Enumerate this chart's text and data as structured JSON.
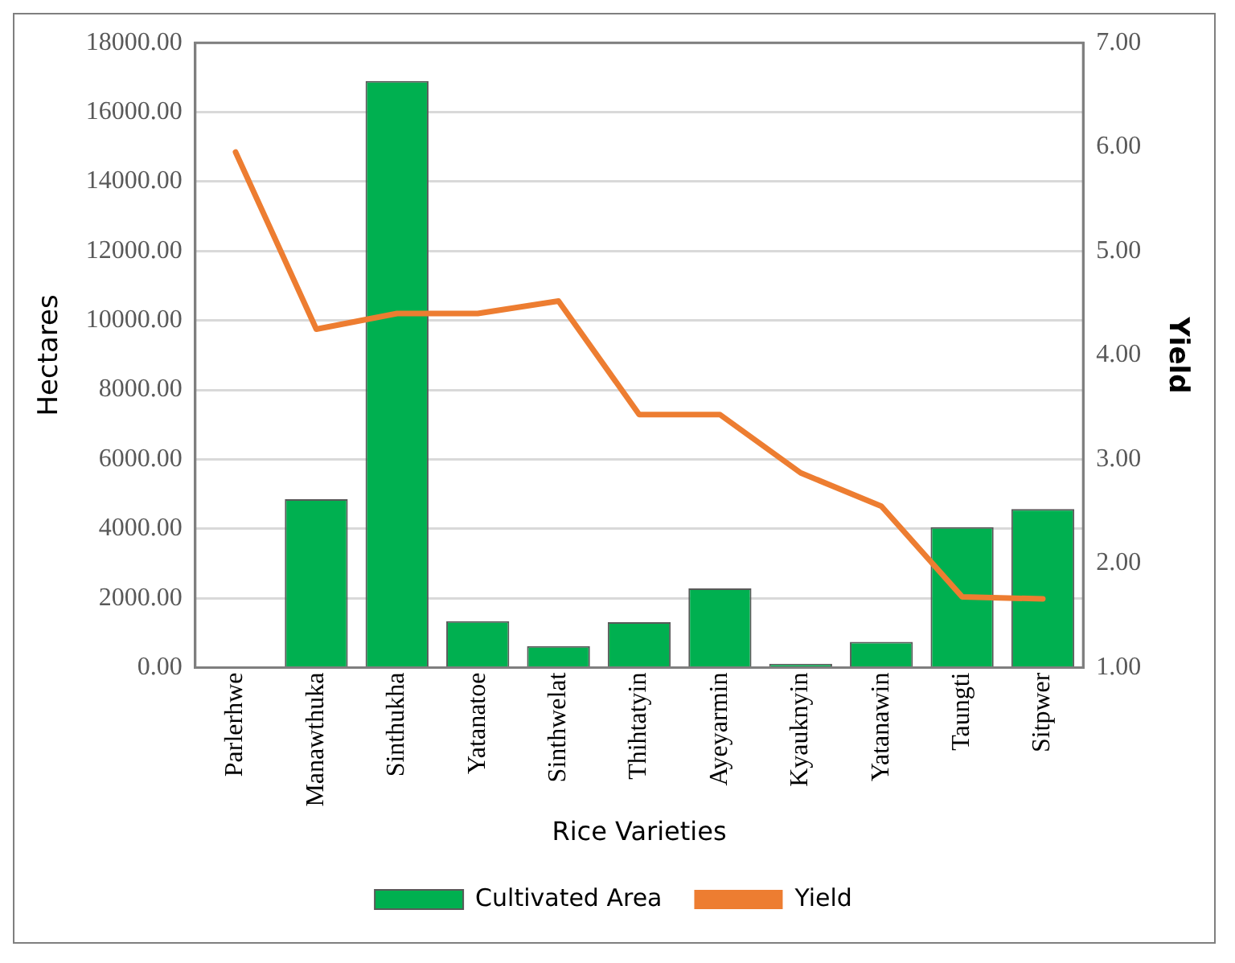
{
  "chart_data": {
    "type": "bar",
    "xlabel": "Rice Varieties",
    "ylabel": "Hectares",
    "y2label": "Yield",
    "categories": [
      "Parlerhwe",
      "Manawthuka",
      "Sinthukha",
      "Yatanatoe",
      "Sinthwelat",
      "Thihtatyin",
      "Ayeyarmin",
      "Kyauknyin",
      "Yatanawin",
      "Taungti",
      "Sitpwer"
    ],
    "series": [
      {
        "name": "Cultivated Area",
        "color": "#00b050",
        "values": [
          30,
          4850,
          16900,
          1340,
          620,
          1310,
          2280,
          110,
          740,
          4050,
          4570
        ]
      },
      {
        "name": "Yield",
        "type": "line",
        "axis": "y2",
        "color": "#ed7d31",
        "values": [
          5.95,
          4.25,
          4.4,
          4.4,
          4.52,
          3.43,
          3.43,
          2.87,
          2.55,
          1.68,
          1.66
        ]
      }
    ],
    "ylim": [
      0,
      18000
    ],
    "yticks": [
      {
        "value": 0,
        "label": "0.00"
      },
      {
        "value": 2000,
        "label": "2000.00"
      },
      {
        "value": 4000,
        "label": "4000.00"
      },
      {
        "value": 6000,
        "label": "6000.00"
      },
      {
        "value": 8000,
        "label": "8000.00"
      },
      {
        "value": 10000,
        "label": "10000.00"
      },
      {
        "value": 12000,
        "label": "12000.00"
      },
      {
        "value": 14000,
        "label": "14000.00"
      },
      {
        "value": 16000,
        "label": "16000.00"
      },
      {
        "value": 18000,
        "label": "18000.00"
      }
    ],
    "y2lim": [
      1,
      7
    ],
    "y2ticks": [
      {
        "value": 1,
        "label": "1.00"
      },
      {
        "value": 2,
        "label": "2.00"
      },
      {
        "value": 3,
        "label": "3.00"
      },
      {
        "value": 4,
        "label": "4.00"
      },
      {
        "value": 5,
        "label": "5.00"
      },
      {
        "value": 6,
        "label": "6.00"
      },
      {
        "value": 7,
        "label": "7.00"
      }
    ],
    "grid": "y",
    "legend": "bottom",
    "marker": "none",
    "line_style": "solid"
  }
}
